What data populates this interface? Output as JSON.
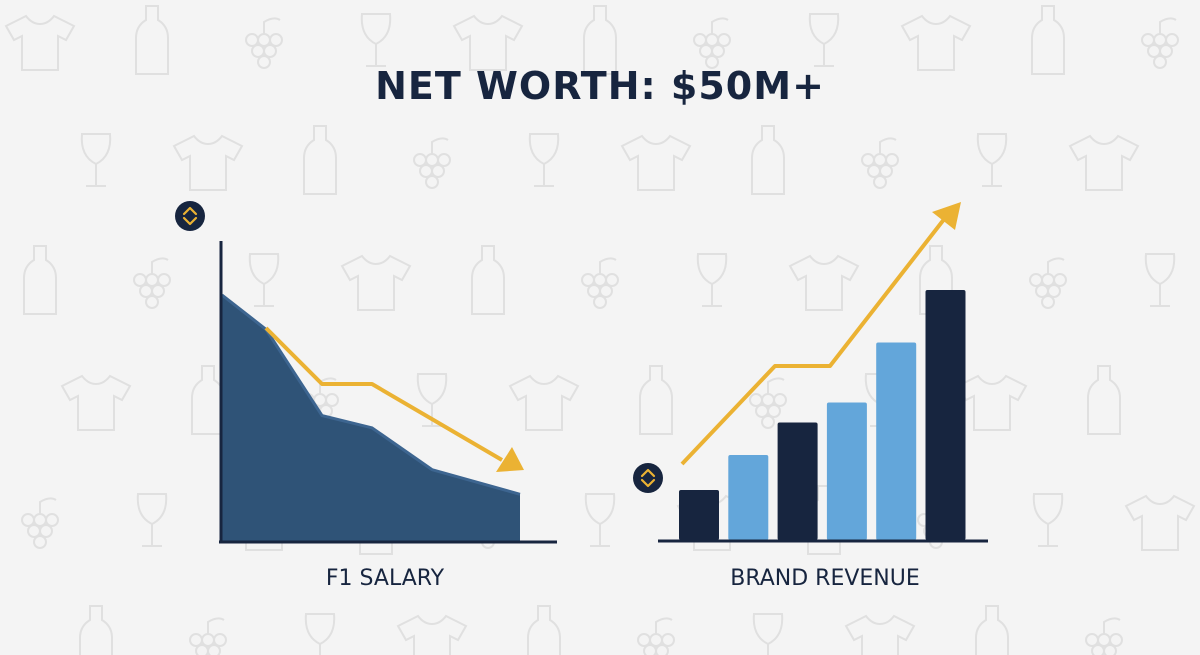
{
  "page": {
    "title": "NET WORTH: $50M+"
  },
  "colors": {
    "background": "#f4f4f4",
    "pattern": "#e2e2e2",
    "navy": "#17253f",
    "area_fill": "#2f5377",
    "light_blue": "#63a6da",
    "accent_gold": "#ebb233",
    "axis": "#17253f"
  },
  "icons": {
    "left_badge": "up-down-arrows-icon",
    "right_badge": "up-down-arrows-icon"
  },
  "chart_data": [
    {
      "type": "area",
      "xlabel": "F1 SALARY",
      "ylabel": "",
      "x": [
        0,
        1,
        2,
        3,
        4,
        5
      ],
      "y": [
        100,
        86,
        51,
        46,
        29,
        19
      ],
      "ylim": [
        0,
        100
      ],
      "trend_arrow": {
        "direction": "down",
        "color": "#ebb233"
      },
      "grid": false
    },
    {
      "type": "bar",
      "xlabel": "BRAND REVENUE",
      "ylabel": "",
      "categories": [
        "1",
        "2",
        "3",
        "4",
        "5",
        "6"
      ],
      "values": [
        20,
        34,
        47,
        55,
        79,
        100
      ],
      "bar_colors": [
        "#17253f",
        "#63a6da",
        "#17253f",
        "#63a6da",
        "#63a6da",
        "#17253f"
      ],
      "ylim": [
        0,
        100
      ],
      "trend_arrow": {
        "direction": "up",
        "color": "#ebb233"
      },
      "grid": false
    }
  ]
}
